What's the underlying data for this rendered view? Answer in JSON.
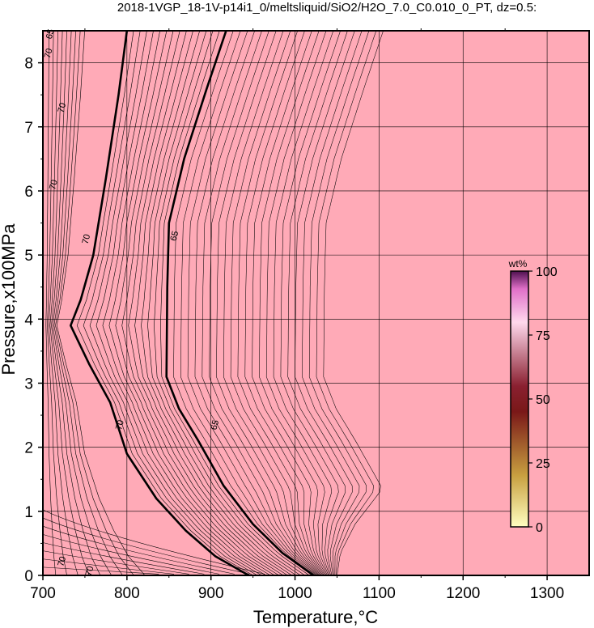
{
  "chart_data": {
    "type": "heatmap",
    "title": "2018-1VGP_18-1V-p14i1_0/meltsliquid/SiO2/H2O_7.0_C0.010_0_PT, dz=0.5:",
    "xlabel": "Temperature,°C",
    "ylabel": "Pressure,x100MPa",
    "xlim": [
      700,
      1350
    ],
    "ylim": [
      0,
      8.5
    ],
    "x_ticks": [
      "700",
      "800",
      "900",
      "1000",
      "1100",
      "1200",
      "1300"
    ],
    "y_ticks": [
      "0",
      "1",
      "2",
      "3",
      "4",
      "5",
      "6",
      "7",
      "8"
    ],
    "grid": true,
    "fill_color": "#ffaab7",
    "colorbar": {
      "unit": "wt%",
      "ticks": [
        "0",
        "25",
        "50",
        "75",
        "100"
      ],
      "range": [
        0,
        100
      ],
      "placement": "right-inside"
    },
    "contour_interval": 0.5,
    "series": [
      {
        "name": "70",
        "points": [
          [
            800,
            8.5
          ],
          [
            790,
            7.5
          ],
          [
            775,
            6.2
          ],
          [
            760,
            5.0
          ],
          [
            745,
            4.3
          ],
          [
            733,
            3.9
          ],
          [
            755,
            3.3
          ],
          [
            780,
            2.7
          ],
          [
            800,
            1.9
          ],
          [
            835,
            1.2
          ],
          [
            870,
            0.7
          ],
          [
            905,
            0.3
          ],
          [
            945,
            0.0
          ]
        ]
      },
      {
        "name": "65",
        "points": [
          [
            918,
            8.5
          ],
          [
            895,
            7.6
          ],
          [
            868,
            6.5
          ],
          [
            850,
            5.5
          ],
          [
            848,
            4.5
          ],
          [
            847,
            3.1
          ],
          [
            862,
            2.6
          ],
          [
            885,
            2.1
          ],
          [
            915,
            1.4
          ],
          [
            950,
            0.8
          ],
          [
            985,
            0.35
          ],
          [
            1022,
            0.0
          ]
        ]
      }
    ],
    "contour_labels": [
      {
        "text": "70",
        "x": 706,
        "y": 8.15
      },
      {
        "text": "65",
        "x": 708,
        "y": 8.45
      },
      {
        "text": "70",
        "x": 722,
        "y": 7.3
      },
      {
        "text": "70",
        "x": 712,
        "y": 6.1
      },
      {
        "text": "70",
        "x": 751,
        "y": 5.25
      },
      {
        "text": "65",
        "x": 856,
        "y": 5.3
      },
      {
        "text": "70",
        "x": 791,
        "y": 2.35
      },
      {
        "text": "65",
        "x": 904,
        "y": 2.35
      },
      {
        "text": "70",
        "x": 722,
        "y": 0.22
      },
      {
        "text": "70",
        "x": 755,
        "y": 0.07
      }
    ]
  }
}
